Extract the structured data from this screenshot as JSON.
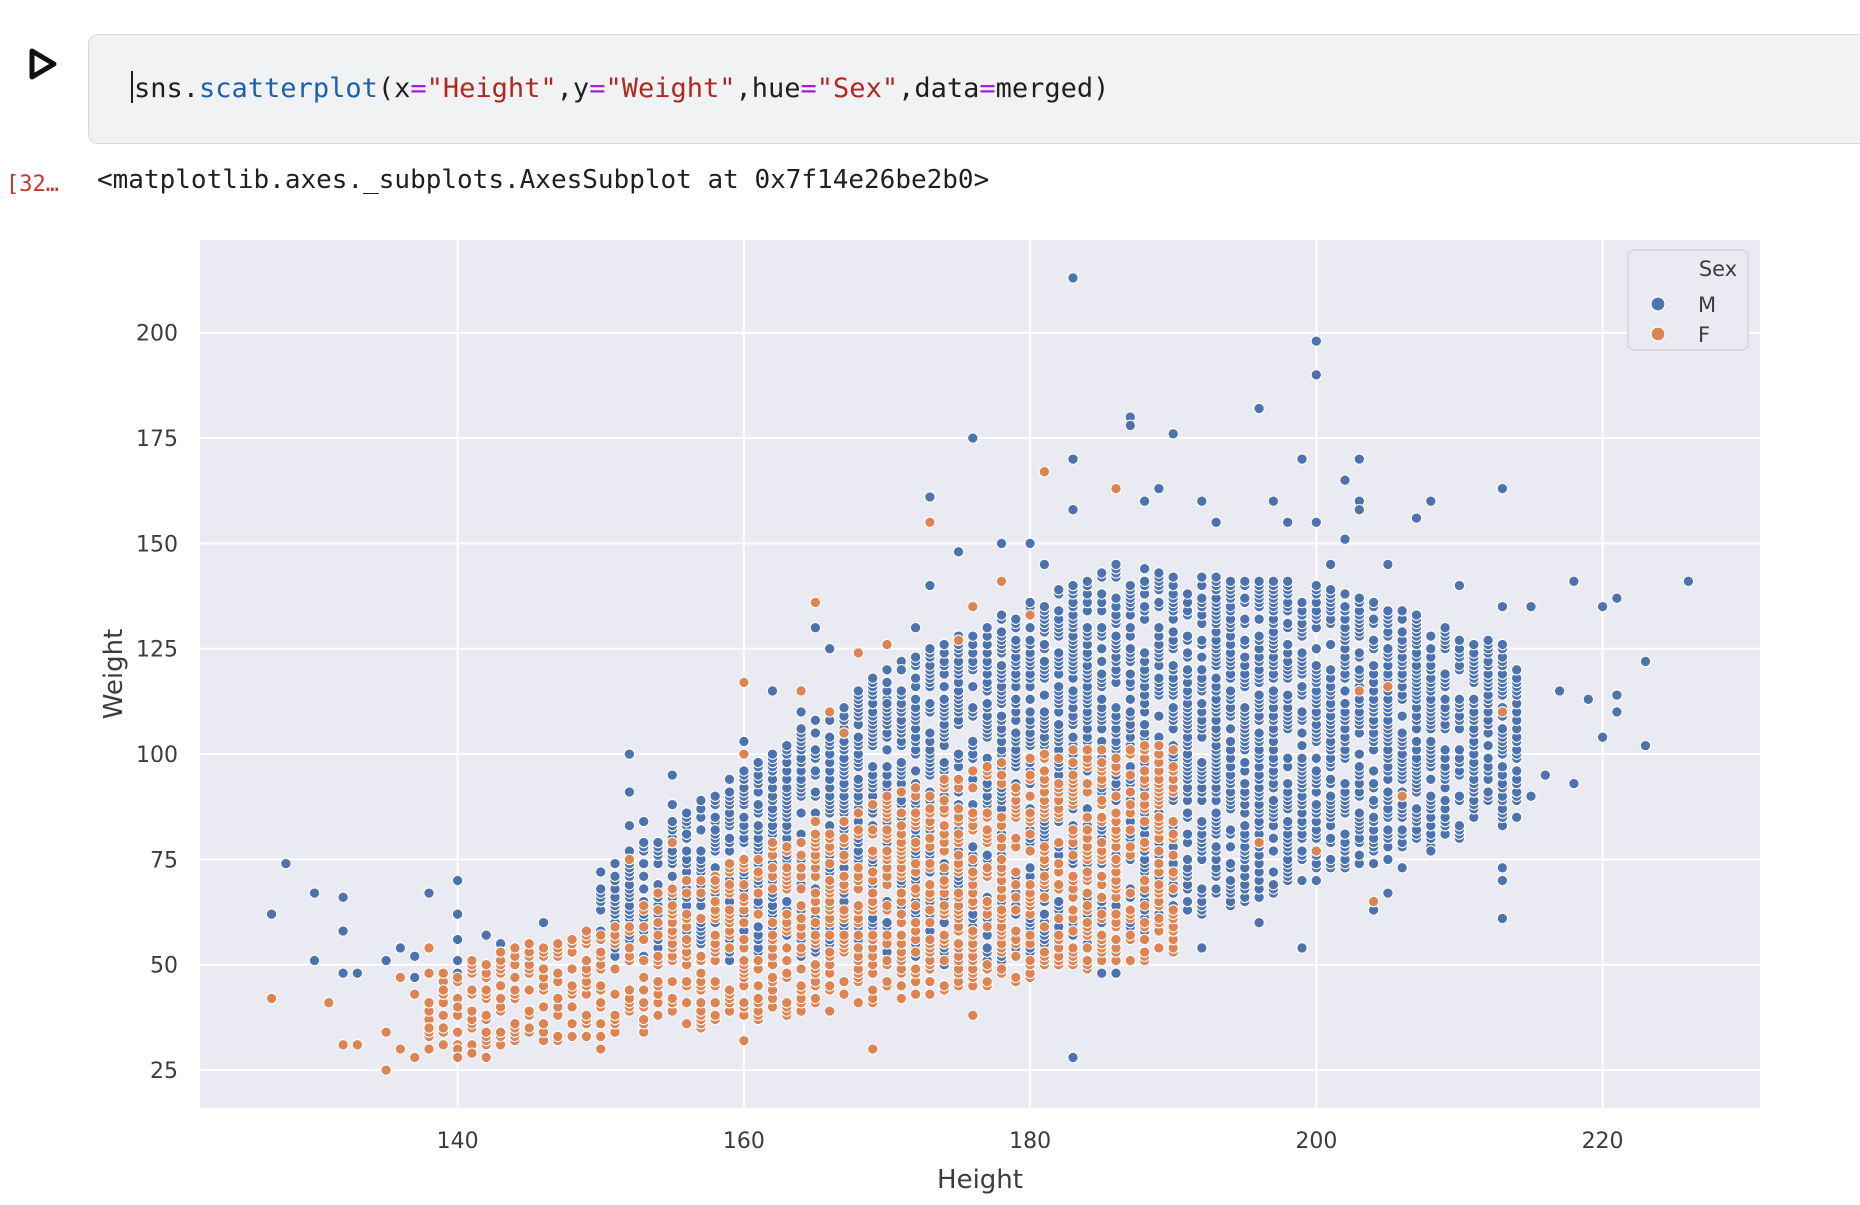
{
  "cell": {
    "code_tokens": [
      {
        "t": "sns.",
        "c": "plain"
      },
      {
        "t": "scatterplot",
        "c": "fn"
      },
      {
        "t": "(x",
        "c": "plain"
      },
      {
        "t": "=",
        "c": "op"
      },
      {
        "t": "\"Height\"",
        "c": "str"
      },
      {
        "t": ",y",
        "c": "plain"
      },
      {
        "t": "=",
        "c": "op"
      },
      {
        "t": "\"Weight\"",
        "c": "str"
      },
      {
        "t": ",hue",
        "c": "plain"
      },
      {
        "t": "=",
        "c": "op"
      },
      {
        "t": "\"Sex\"",
        "c": "str"
      },
      {
        "t": ",data",
        "c": "plain"
      },
      {
        "t": "=",
        "c": "op"
      },
      {
        "t": "merged)",
        "c": "plain"
      }
    ],
    "run_icon": "play-icon"
  },
  "output": {
    "execution_count": "[32…",
    "repr": "<matplotlib.axes._subplots.AxesSubplot at 0x7f14e26be2b0>"
  },
  "colors": {
    "M": "#4c72b0",
    "F": "#dd8452",
    "plot_bg": "#eaeaf2",
    "grid": "#ffffff",
    "tick_text": "#3c3c3c"
  },
  "chart_data": {
    "type": "scatter",
    "title": "",
    "xlabel": "Height",
    "ylabel": "Weight",
    "xlim": [
      122,
      231
    ],
    "ylim": [
      16,
      222
    ],
    "xticks": [
      140,
      160,
      180,
      200,
      220
    ],
    "yticks": [
      25,
      50,
      75,
      100,
      125,
      150,
      175,
      200
    ],
    "grid": true,
    "legend": {
      "title": "Sex",
      "placement": "top-right",
      "entries": [
        "M",
        "F"
      ]
    },
    "series": [
      {
        "name": "M",
        "points": [
          [
            127,
            62
          ],
          [
            128,
            74
          ],
          [
            130,
            67
          ],
          [
            130,
            51
          ],
          [
            132,
            66
          ],
          [
            132,
            58
          ],
          [
            132,
            48
          ],
          [
            133,
            48
          ],
          [
            135,
            51
          ],
          [
            136,
            54
          ],
          [
            137,
            52
          ],
          [
            137,
            47
          ],
          [
            138,
            67
          ],
          [
            140,
            70
          ],
          [
            140,
            62
          ],
          [
            140,
            56
          ],
          [
            140,
            51
          ],
          [
            140,
            48
          ],
          [
            142,
            57
          ],
          [
            143,
            55
          ],
          [
            144,
            53
          ],
          [
            146,
            60
          ],
          [
            147,
            55
          ],
          [
            150,
            68
          ],
          [
            150,
            58
          ],
          [
            152,
            100
          ],
          [
            152,
            91
          ],
          [
            152,
            83
          ],
          [
            153,
            84
          ],
          [
            155,
            95
          ],
          [
            155,
            88
          ],
          [
            156,
            81
          ],
          [
            158,
            82
          ],
          [
            160,
            103
          ],
          [
            161,
            88
          ],
          [
            162,
            115
          ],
          [
            164,
            110
          ],
          [
            165,
            130
          ],
          [
            166,
            125
          ],
          [
            170,
            112
          ],
          [
            171,
            120
          ],
          [
            172,
            130
          ],
          [
            173,
            161
          ],
          [
            173,
            140
          ],
          [
            175,
            148
          ],
          [
            176,
            175
          ],
          [
            178,
            150
          ],
          [
            180,
            150
          ],
          [
            181,
            145
          ],
          [
            183,
            213
          ],
          [
            183,
            170
          ],
          [
            183,
            158
          ],
          [
            183,
            28
          ],
          [
            185,
            48
          ],
          [
            186,
            163
          ],
          [
            187,
            180
          ],
          [
            187,
            178
          ],
          [
            188,
            160
          ],
          [
            189,
            163
          ],
          [
            190,
            176
          ],
          [
            192,
            160
          ],
          [
            193,
            155
          ],
          [
            196,
            182
          ],
          [
            197,
            160
          ],
          [
            198,
            155
          ],
          [
            199,
            170
          ],
          [
            200,
            198
          ],
          [
            200,
            190
          ],
          [
            200,
            155
          ],
          [
            201,
            145
          ],
          [
            202,
            165
          ],
          [
            202,
            151
          ],
          [
            203,
            170
          ],
          [
            203,
            160
          ],
          [
            203,
            158
          ],
          [
            205,
            145
          ],
          [
            207,
            156
          ],
          [
            208,
            160
          ],
          [
            210,
            140
          ],
          [
            213,
            163
          ],
          [
            213,
            135
          ],
          [
            213,
            73
          ],
          [
            213,
            70
          ],
          [
            213,
            61
          ],
          [
            215,
            135
          ],
          [
            215,
            90
          ],
          [
            216,
            95
          ],
          [
            217,
            115
          ],
          [
            218,
            141
          ],
          [
            218,
            93
          ],
          [
            219,
            113
          ],
          [
            220,
            135
          ],
          [
            220,
            104
          ],
          [
            221,
            137
          ],
          [
            221,
            114
          ],
          [
            221,
            110
          ],
          [
            223,
            122
          ],
          [
            223,
            102
          ],
          [
            226,
            141
          ],
          [
            204,
            63
          ],
          [
            205,
            67
          ],
          [
            206,
            73
          ],
          [
            208,
            77
          ],
          [
            199,
            54
          ],
          [
            196,
            60
          ],
          [
            192,
            54
          ],
          [
            190,
            56
          ],
          [
            186,
            48
          ]
        ],
        "dense_region": {
          "x_range": [
            150,
            214
          ],
          "weight_min_at": [
            [
              150,
              52
            ],
            [
              180,
              50
            ],
            [
              214,
              84
            ]
          ],
          "weight_max_at": [
            [
              150,
              72
            ],
            [
              170,
              120
            ],
            [
              186,
              145
            ],
            [
              200,
              140
            ],
            [
              214,
              125
            ]
          ]
        }
      },
      {
        "name": "F",
        "points": [
          [
            127,
            42
          ],
          [
            131,
            41
          ],
          [
            132,
            31
          ],
          [
            133,
            31
          ],
          [
            135,
            25
          ],
          [
            135,
            34
          ],
          [
            136,
            30
          ],
          [
            136,
            47
          ],
          [
            137,
            28
          ],
          [
            137,
            43
          ],
          [
            138,
            35
          ],
          [
            138,
            54
          ],
          [
            139,
            44
          ],
          [
            140,
            30
          ],
          [
            140,
            40
          ],
          [
            140,
            28
          ],
          [
            141,
            29
          ],
          [
            142,
            28
          ],
          [
            142,
            38
          ],
          [
            150,
            30
          ],
          [
            152,
            75
          ],
          [
            155,
            79
          ],
          [
            158,
            70
          ],
          [
            160,
            117
          ],
          [
            160,
            100
          ],
          [
            160,
            32
          ],
          [
            164,
            115
          ],
          [
            165,
            136
          ],
          [
            166,
            110
          ],
          [
            167,
            105
          ],
          [
            168,
            124
          ],
          [
            169,
            30
          ],
          [
            170,
            126
          ],
          [
            173,
            155
          ],
          [
            175,
            127
          ],
          [
            176,
            135
          ],
          [
            176,
            38
          ],
          [
            178,
            141
          ],
          [
            180,
            133
          ],
          [
            181,
            167
          ],
          [
            186,
            163
          ],
          [
            196,
            79
          ],
          [
            200,
            77
          ],
          [
            204,
            65
          ],
          [
            206,
            90
          ],
          [
            203,
            115
          ],
          [
            205,
            116
          ],
          [
            213,
            110
          ]
        ],
        "dense_region": {
          "x_range": [
            138,
            190
          ],
          "weight_min_at": [
            [
              138,
              30
            ],
            [
              160,
              36
            ],
            [
              180,
              47
            ],
            [
              190,
              52
            ]
          ],
          "weight_max_at": [
            [
              138,
              48
            ],
            [
              150,
              60
            ],
            [
              165,
              85
            ],
            [
              180,
              100
            ],
            [
              190,
              102
            ]
          ]
        }
      }
    ]
  }
}
